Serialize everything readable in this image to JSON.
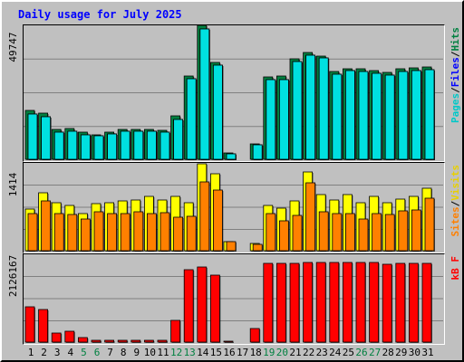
{
  "title": "Daily usage for July 2025",
  "chart_data": {
    "type": "bar",
    "categories": [
      "1",
      "2",
      "3",
      "4",
      "5",
      "6",
      "7",
      "8",
      "9",
      "10",
      "11",
      "12",
      "13",
      "14",
      "15",
      "16",
      "17",
      "18",
      "19",
      "20",
      "21",
      "22",
      "23",
      "24",
      "25",
      "26",
      "27",
      "28",
      "29",
      "30",
      "31"
    ],
    "weekend_days": [
      "5",
      "6",
      "12",
      "13",
      "19",
      "20",
      "26",
      "27"
    ],
    "panels": [
      {
        "name": "traffic",
        "max_label": "49747",
        "ymax": 49747,
        "grid": true,
        "right_label": [
          {
            "text": "Pages",
            "color": "#00c8c8"
          },
          {
            "text": "/",
            "color": "#000000"
          },
          {
            "text": "Files",
            "color": "#0000ff"
          },
          {
            "text": "/",
            "color": "#000000"
          },
          {
            "text": "Hits",
            "color": "#008040"
          }
        ],
        "series": [
          {
            "name": "Hits",
            "color": "#008040",
            "values": [
              18400,
              17200,
              11000,
              11600,
              10100,
              9300,
              10300,
              11000,
              11200,
              11000,
              10900,
              16300,
              31300,
              50000,
              36300,
              2200,
              0,
              5700,
              30900,
              31000,
              37600,
              39900,
              38700,
              32800,
              33900,
              33700,
              33100,
              32500,
              33800,
              34300,
              34500
            ]
          },
          {
            "name": "Files",
            "color": "#0000ff",
            "values": [
              17000,
              16000,
              10200,
              10600,
              9300,
              8700,
              9500,
              10400,
              10600,
              10400,
              10100,
              15000,
              30000,
              48800,
              35300,
              2000,
              0,
              5500,
              29800,
              29900,
              36600,
              38800,
              37800,
              31800,
              33000,
              32800,
              32000,
              31400,
              32700,
              33300,
              33400
            ]
          },
          {
            "name": "Pages",
            "color": "#00e0e0",
            "values": [
              17000,
              16000,
              10200,
              10600,
              9300,
              8700,
              9500,
              10400,
              10600,
              10400,
              10100,
              15000,
              30000,
              48800,
              35300,
              2000,
              0,
              5500,
              29800,
              29900,
              36600,
              38800,
              37800,
              31800,
              33000,
              32800,
              32000,
              31400,
              32700,
              33300,
              33400
            ]
          }
        ]
      },
      {
        "name": "visits",
        "max_label": "1414",
        "ymax": 1414,
        "grid": true,
        "right_label": [
          {
            "text": "Sites",
            "color": "#ff8000"
          },
          {
            "text": "/",
            "color": "#000000"
          },
          {
            "text": "Visits",
            "color": "#e8d000"
          }
        ],
        "series": [
          {
            "name": "Visits",
            "color": "#ffff00",
            "values": [
              680,
              950,
              780,
              740,
              610,
              770,
              780,
              810,
              830,
              880,
              830,
              880,
              780,
              1420,
              1250,
              150,
              0,
              120,
              740,
              690,
              810,
              1280,
              920,
              820,
              920,
              780,
              880,
              780,
              840,
              880,
              1020
            ]
          },
          {
            "name": "Sites",
            "color": "#ff8000",
            "values": [
              600,
              810,
              600,
              590,
              510,
              630,
              610,
              600,
              640,
              610,
              620,
              540,
              560,
              1120,
              990,
              150,
              0,
              100,
              600,
              480,
              570,
              1100,
              640,
              600,
              600,
              520,
              610,
              590,
              650,
              670,
              860
            ]
          }
        ]
      },
      {
        "name": "kbytes",
        "max_label": "2126167",
        "ymax": 2126167,
        "grid": true,
        "right_label": [
          {
            "text": "kB F",
            "color": "#ff0000"
          }
        ],
        "series": [
          {
            "name": "kB F",
            "color": "#ff0000",
            "values": [
              870000,
              790000,
              220000,
              260000,
              110000,
              40000,
              40000,
              40000,
              40000,
              40000,
              40000,
              540000,
              1780000,
              1840000,
              1640000,
              20000,
              0,
              340000,
              1930000,
              1930000,
              1930000,
              1950000,
              1950000,
              1950000,
              1950000,
              1950000,
              1950000,
              1910000,
              1930000,
              1930000,
              1930000
            ]
          }
        ]
      }
    ],
    "grid": "on",
    "legend": "right vertical"
  }
}
